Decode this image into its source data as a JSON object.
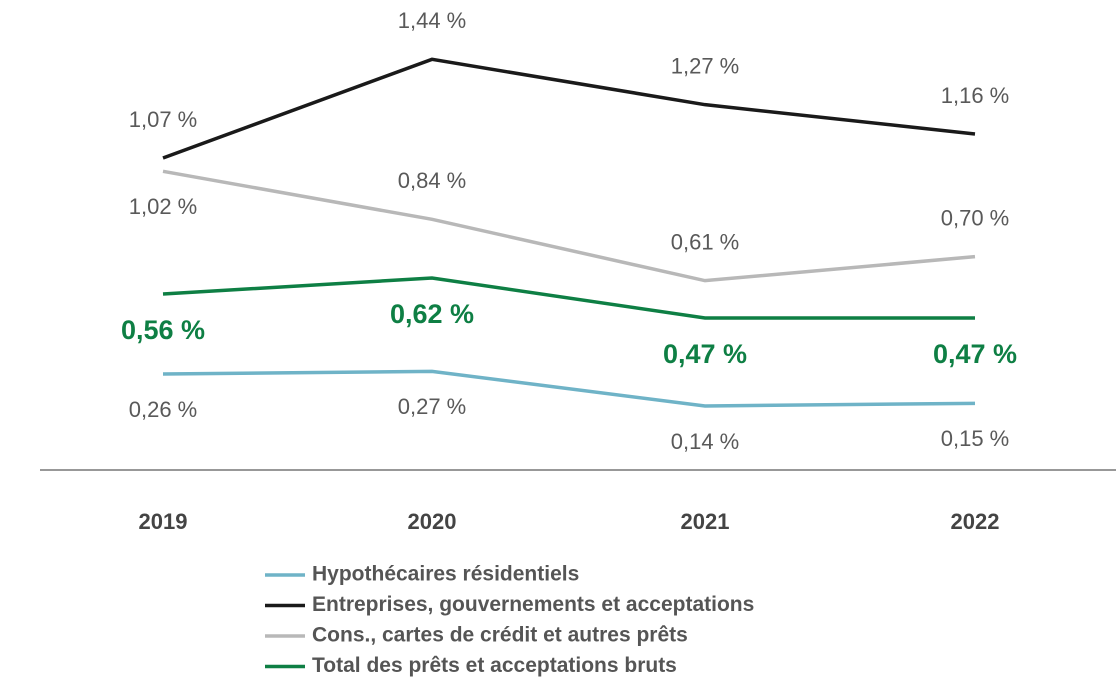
{
  "chart_data": {
    "type": "line",
    "categories": [
      "2019",
      "2020",
      "2021",
      "2022"
    ],
    "series": [
      {
        "name": "Hypothécaires résidentiels",
        "color": "#6fb3c7",
        "values": [
          0.26,
          0.27,
          0.14,
          0.15
        ],
        "value_labels": [
          "0,26 %",
          "0,27 %",
          "0,14 %",
          "0,15 %"
        ]
      },
      {
        "name": "Entreprises, gouvernements et acceptations",
        "color": "#1a1a1a",
        "values": [
          1.07,
          1.44,
          1.27,
          1.16
        ],
        "value_labels": [
          "1,07 %",
          "1,44 %",
          "1,27 %",
          "1,16 %"
        ]
      },
      {
        "name": "Cons., cartes de crédit et autres prêts",
        "color": "#b8b8b8",
        "values": [
          1.02,
          0.84,
          0.61,
          0.7
        ],
        "value_labels": [
          "1,02 %",
          "0,84 %",
          "0,61 %",
          "0,70 %"
        ]
      },
      {
        "name": "Total des prêts et acceptations bruts",
        "color": "#0e7f44",
        "values": [
          0.56,
          0.62,
          0.47,
          0.47
        ],
        "value_labels": [
          "0,56 %",
          "0,62 %",
          "0,47 %",
          "0,47 %"
        ]
      }
    ],
    "ylim": [
      -0.1,
      1.7
    ]
  }
}
